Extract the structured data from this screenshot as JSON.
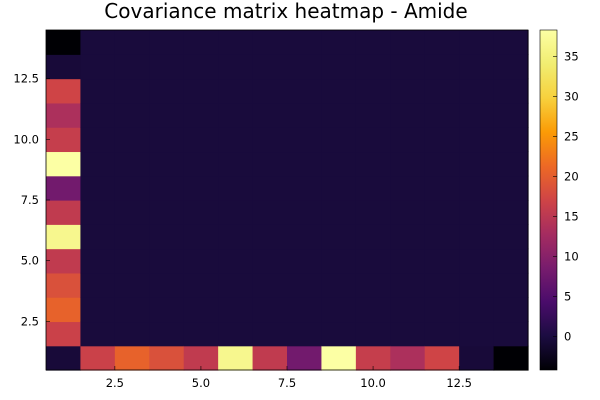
{
  "chart_data": {
    "type": "heatmap",
    "title": "Covariance matrix heatmap - Amide",
    "xlabel": "",
    "ylabel": "",
    "xlim": [
      0.5,
      14.5
    ],
    "ylim": [
      0.5,
      14.5
    ],
    "clim": [
      -4.2,
      38.3
    ],
    "colormap": "inferno",
    "x_ticks": [
      "2.5",
      "5.0",
      "7.5",
      "10.0",
      "12.5"
    ],
    "y_ticks": [
      "2.5",
      "5.0",
      "7.5",
      "10.0",
      "12.5"
    ],
    "colorbar_ticks": [
      "0",
      "5",
      "10",
      "15",
      "20",
      "25",
      "30",
      "35"
    ],
    "grid": false,
    "x": [
      1,
      2,
      3,
      4,
      5,
      6,
      7,
      8,
      9,
      10,
      11,
      12,
      13,
      14
    ],
    "y": [
      1,
      2,
      3,
      4,
      5,
      6,
      7,
      8,
      9,
      10,
      11,
      12,
      13,
      14
    ],
    "background_value": -0.3,
    "first_column_values": [
      -0.5,
      16.5,
      20.5,
      18.5,
      15.5,
      36.5,
      15.5,
      8.0,
      38.3,
      16.0,
      13.5,
      17.0,
      -0.5,
      -4.2
    ],
    "first_row_values": [
      -0.5,
      16.5,
      20.5,
      18.5,
      15.5,
      36.5,
      15.5,
      8.0,
      38.3,
      16.0,
      13.5,
      17.0,
      -0.5,
      -4.2
    ]
  }
}
